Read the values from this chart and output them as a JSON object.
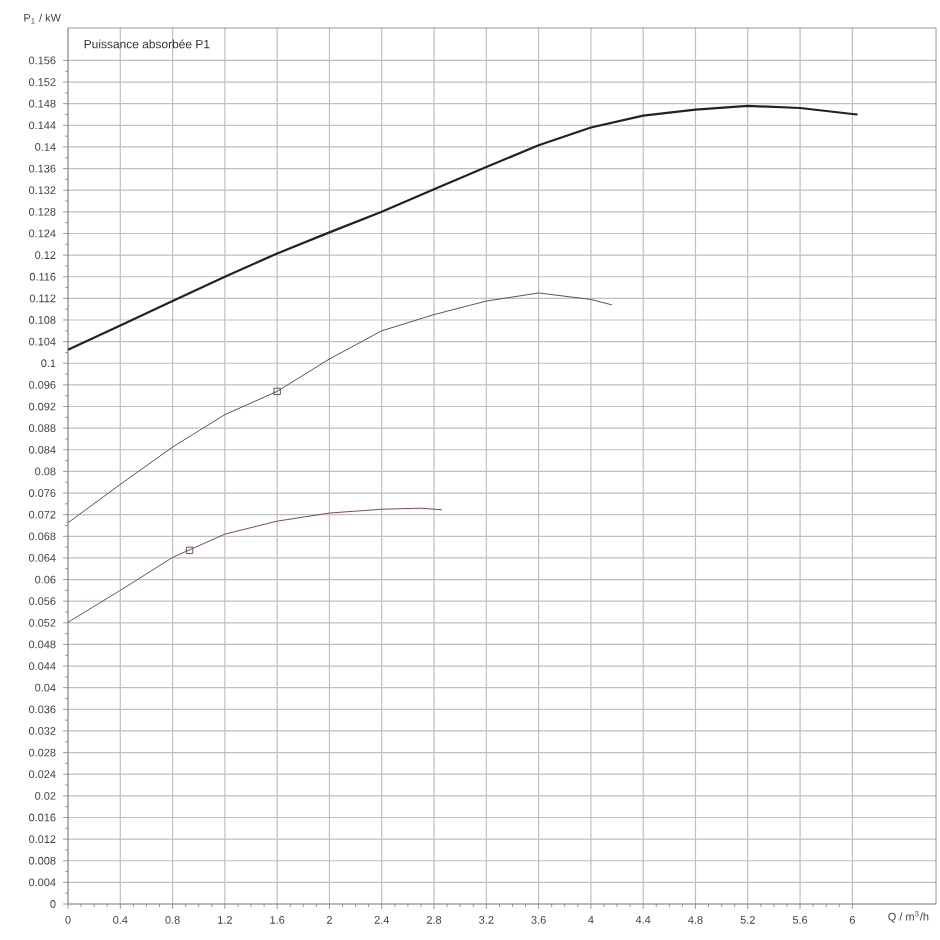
{
  "chart_data": {
    "type": "line",
    "title": "Puissance absorbée P1",
    "xlabel": "Q / m$^{3}$/h",
    "ylabel": "P$_{1}$ / kW",
    "xlim": [
      0,
      6.64
    ],
    "ylim": [
      0,
      0.162
    ],
    "xticks": [
      0,
      0.4,
      0.8,
      1.2,
      1.6,
      2,
      2.4,
      2.8,
      3.2,
      3.6,
      4,
      4.4,
      4.8,
      5.2,
      5.6,
      6
    ],
    "yticks": [
      0,
      0.004,
      0.008,
      0.012,
      0.016,
      0.02,
      0.024,
      0.028,
      0.032,
      0.036,
      0.04,
      0.044,
      0.048,
      0.052,
      0.056,
      0.06,
      0.064,
      0.068,
      0.072,
      0.076,
      0.08,
      0.084,
      0.088,
      0.092,
      0.096,
      0.1,
      0.104,
      0.108,
      0.112,
      0.116,
      0.12,
      0.124,
      0.128,
      0.132,
      0.136,
      0.14,
      0.144,
      0.148,
      0.152,
      0.156
    ],
    "grid": true,
    "series": [
      {
        "color": "#222222",
        "x": [
          0,
          0.4,
          0.8,
          1.2,
          1.6,
          2,
          2.4,
          2.8,
          3.2,
          3.6,
          4,
          4.4,
          4.8,
          5.2,
          5.6,
          6,
          6.04
        ],
        "values": [
          0.1025,
          0.107,
          0.1115,
          0.116,
          0.1203,
          0.1242,
          0.128,
          0.1322,
          0.1363,
          0.1403,
          0.1436,
          0.1458,
          0.1469,
          0.1476,
          0.1472,
          0.1461,
          0.146
        ]
      },
      {
        "color": "#555555",
        "x": [
          0,
          0.4,
          0.8,
          1.2,
          1.6,
          2,
          2.4,
          2.8,
          3.2,
          3.6,
          4,
          4.16
        ],
        "values": [
          0.0705,
          0.0776,
          0.0845,
          0.0905,
          0.0948,
          0.1008,
          0.106,
          0.109,
          0.1115,
          0.113,
          0.1118,
          0.1108
        ]
      },
      {
        "color": "#7a4a5a",
        "x": [
          0,
          0.4,
          0.8,
          1.2,
          1.6,
          2,
          2.4,
          2.7,
          2.86
        ],
        "values": [
          0.0521,
          0.058,
          0.0641,
          0.0684,
          0.0708,
          0.0723,
          0.073,
          0.0732,
          0.0729
        ]
      },
      {
        "type": "scatter",
        "marker": "square",
        "color": "#555555",
        "x": [
          1.6
        ],
        "values": [
          0.0948
        ]
      },
      {
        "type": "scatter",
        "marker": "square",
        "color": "#7a4a5a",
        "x": [
          0.93
        ],
        "values": [
          0.0654
        ]
      }
    ]
  }
}
